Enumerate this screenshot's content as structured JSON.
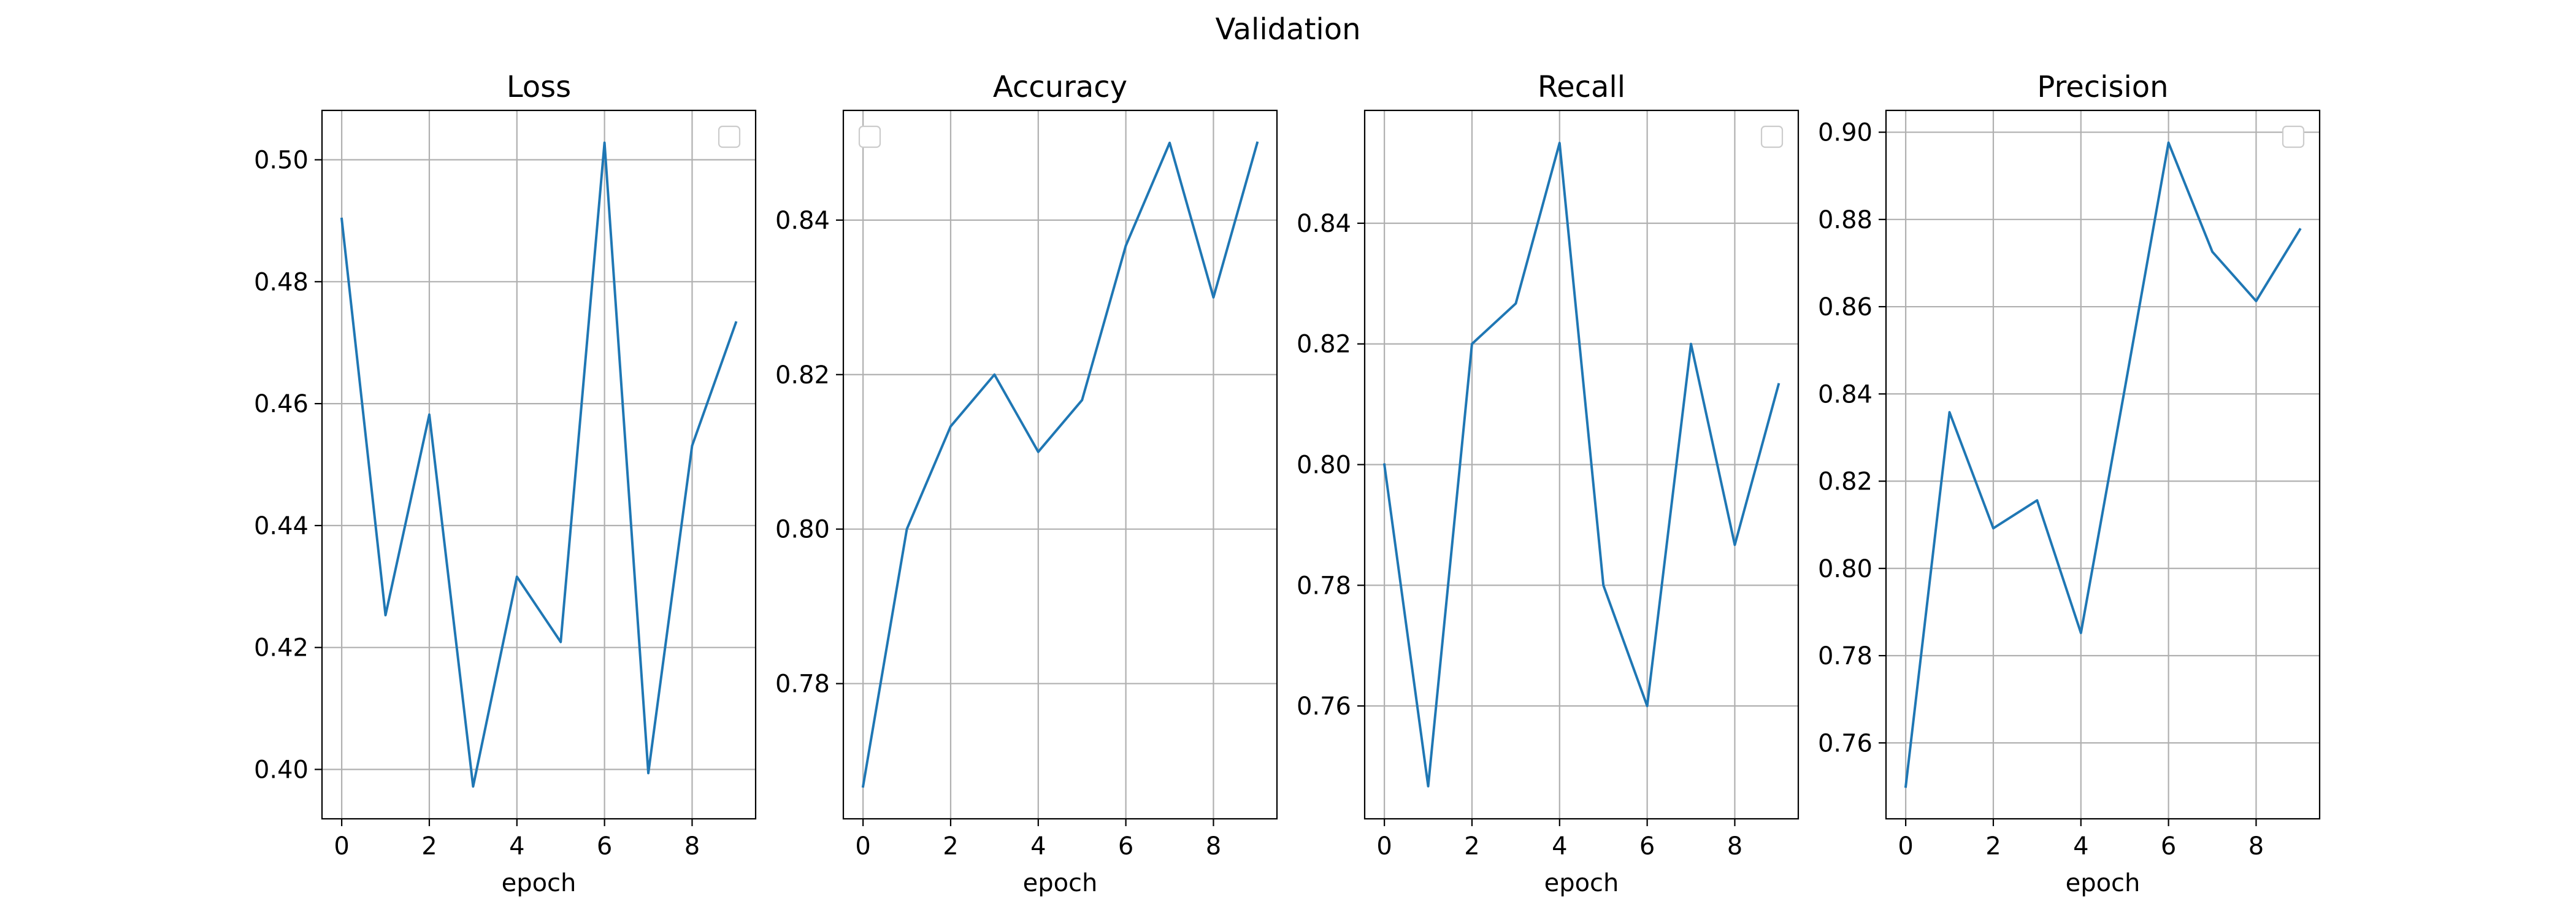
{
  "figure": {
    "title": "Validation"
  },
  "colors": {
    "series": "#1f77b4",
    "grid": "#b0b0b0"
  },
  "chart_data": [
    {
      "type": "line",
      "title": "Loss",
      "xlabel": "epoch",
      "ylabel": "",
      "x": [
        0,
        1,
        2,
        3,
        4,
        5,
        6,
        7,
        8,
        9
      ],
      "series": [
        {
          "values": [
            0.4903,
            0.4253,
            0.4582,
            0.3972,
            0.4316,
            0.4209,
            0.5028,
            0.3994,
            0.4531,
            0.4733
          ]
        }
      ],
      "xlim": [
        -0.45,
        9.45
      ],
      "ylim": [
        0.3919,
        0.5081
      ],
      "xticks": [
        0,
        2,
        4,
        6,
        8
      ],
      "yticks": [
        0.4,
        0.42,
        0.44,
        0.46,
        0.48,
        0.5
      ],
      "xtick_labels": [
        "0",
        "2",
        "4",
        "6",
        "8"
      ],
      "ytick_labels": [
        "0.40",
        "0.42",
        "0.44",
        "0.46",
        "0.48",
        "0.50"
      ],
      "grid": true,
      "legend": "upper right",
      "legend_entries": []
    },
    {
      "type": "line",
      "title": "Accuracy",
      "xlabel": "epoch",
      "ylabel": "",
      "x": [
        0,
        1,
        2,
        3,
        4,
        5,
        6,
        7,
        8,
        9
      ],
      "series": [
        {
          "values": [
            0.7667,
            0.8,
            0.8133,
            0.82,
            0.81,
            0.8167,
            0.8367,
            0.85,
            0.83,
            0.85
          ]
        }
      ],
      "xlim": [
        -0.45,
        9.45
      ],
      "ylim": [
        0.7625,
        0.8542
      ],
      "xticks": [
        0,
        2,
        4,
        6,
        8
      ],
      "yticks": [
        0.78,
        0.8,
        0.82,
        0.84
      ],
      "xtick_labels": [
        "0",
        "2",
        "4",
        "6",
        "8"
      ],
      "ytick_labels": [
        "0.78",
        "0.80",
        "0.82",
        "0.84"
      ],
      "grid": true,
      "legend": "upper left",
      "legend_entries": []
    },
    {
      "type": "line",
      "title": "Recall",
      "xlabel": "epoch",
      "ylabel": "",
      "x": [
        0,
        1,
        2,
        3,
        4,
        5,
        6,
        7,
        8,
        9
      ],
      "series": [
        {
          "values": [
            0.8,
            0.7467,
            0.82,
            0.8267,
            0.8533,
            0.78,
            0.76,
            0.82,
            0.7867,
            0.8133
          ]
        }
      ],
      "xlim": [
        -0.45,
        9.45
      ],
      "ylim": [
        0.7413,
        0.8587
      ],
      "xticks": [
        0,
        2,
        4,
        6,
        8
      ],
      "yticks": [
        0.76,
        0.78,
        0.8,
        0.82,
        0.84
      ],
      "xtick_labels": [
        "0",
        "2",
        "4",
        "6",
        "8"
      ],
      "ytick_labels": [
        "0.76",
        "0.78",
        "0.80",
        "0.82",
        "0.84"
      ],
      "grid": true,
      "legend": "upper right",
      "legend_entries": []
    },
    {
      "type": "line",
      "title": "Precision",
      "xlabel": "epoch",
      "ylabel": "",
      "x": [
        0,
        1,
        2,
        3,
        4,
        5,
        6,
        7,
        8,
        9
      ],
      "series": [
        {
          "values": [
            0.75,
            0.8358,
            0.8092,
            0.8156,
            0.7852,
            0.8411,
            0.8976,
            0.8726,
            0.8613,
            0.8777
          ]
        }
      ],
      "xlim": [
        -0.45,
        9.45
      ],
      "ylim": [
        0.7426,
        0.905
      ],
      "xticks": [
        0,
        2,
        4,
        6,
        8
      ],
      "yticks": [
        0.76,
        0.78,
        0.8,
        0.82,
        0.84,
        0.86,
        0.88,
        0.9
      ],
      "xtick_labels": [
        "0",
        "2",
        "4",
        "6",
        "8"
      ],
      "ytick_labels": [
        "0.76",
        "0.78",
        "0.80",
        "0.82",
        "0.84",
        "0.86",
        "0.88",
        "0.90"
      ],
      "grid": true,
      "legend": "upper right",
      "legend_entries": []
    }
  ]
}
